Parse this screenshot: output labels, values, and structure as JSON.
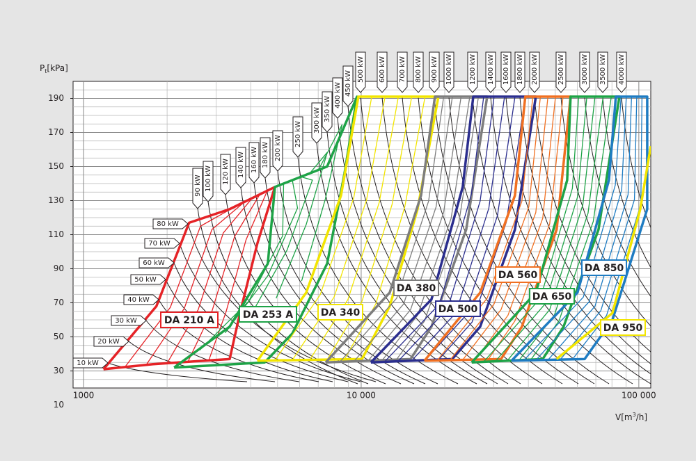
{
  "chart_data": {
    "type": "line",
    "x_scale": "log",
    "y_label": {
      "symbol": "P",
      "subscript": "t",
      "unit": "[kPa]"
    },
    "x_label": {
      "symbol": "V[m",
      "superscript": "3",
      "unit": "/h]"
    },
    "xlim": [
      917,
      110400
    ],
    "ylim": [
      20,
      200
    ],
    "xticks": [
      1000,
      {
        "value": 10000,
        "label": "10 000"
      },
      {
        "value": 100000,
        "label": "100 000"
      }
    ],
    "yticks": [
      10,
      30,
      50,
      70,
      90,
      110,
      130,
      150,
      170,
      190
    ],
    "grid": true,
    "series": [
      {
        "name": "DA 210 A",
        "color": "#e52327",
        "x": [
          1180,
          1830,
          2400,
          3360,
          4890,
          4230,
          3660,
          3360,
          1780,
          1180
        ],
        "values": [
          31,
          68,
          117,
          125,
          138,
          105,
          64,
          37,
          34,
          31
        ]
      },
      {
        "name": "DA 253 A",
        "color": "#1ea347",
        "x": [
          2120,
          3360,
          4610,
          4890,
          7540,
          9660,
          8710,
          7540,
          5650,
          4490,
          2120
        ],
        "values": [
          32,
          56,
          93,
          138,
          150,
          191,
          146,
          93,
          52,
          35,
          32
        ]
      },
      {
        "name": "DA 340",
        "color": "#f2e500",
        "x": [
          4230,
          6340,
          8460,
          9770,
          18970,
          15960,
          12670,
          10070,
          4230
        ],
        "values": [
          36,
          76,
          133,
          191,
          191,
          125,
          68,
          37,
          36
        ]
      },
      {
        "name": "DA 380",
        "color": "#7d7d7d",
        "x": [
          7450,
          12670,
          16430,
          18440,
          28430,
          23890,
          17910,
          15070,
          7450
        ],
        "values": [
          35,
          76,
          133,
          191,
          191,
          113,
          56,
          37,
          35
        ]
      },
      {
        "name": "DA 500",
        "color": "#2b2e8e",
        "x": [
          10840,
          17910,
          23210,
          25330,
          42560,
          35790,
          26830,
          21290,
          10840
        ],
        "values": [
          35,
          72,
          138,
          191,
          191,
          113,
          56,
          37,
          35
        ]
      },
      {
        "name": "DA 560",
        "color": "#f07022",
        "x": [
          16900,
          26830,
          35790,
          39000,
          56780,
          50580,
          37910,
          31900,
          16900
        ],
        "values": [
          36,
          76,
          133,
          191,
          191,
          113,
          56,
          37,
          36
        ]
      },
      {
        "name": "DA 650",
        "color": "#1ea347",
        "x": [
          25010,
          42560,
          55190,
          56780,
          85110,
          71580,
          53580,
          45080,
          25010
        ],
        "values": [
          35,
          76,
          142,
          191,
          191,
          113,
          56,
          37,
          35
        ]
      },
      {
        "name": "DA 850",
        "color": "#1f7cc2",
        "x": [
          34780,
          60140,
          78040,
          82640,
          107200,
          107200,
          80350,
          63800,
          34780
        ],
        "values": [
          36,
          76,
          142,
          191,
          191,
          125,
          60,
          37,
          36
        ]
      },
      {
        "name": "DA 950",
        "color": "#f2e500",
        "x": [
          50580,
          80350,
          101200,
          110400
        ],
        "values": [
          37,
          64,
          125,
          162
        ]
      }
    ],
    "power_labels": [
      "10 kW",
      "20 kW",
      "30 kW",
      "40 kW",
      "50 kW",
      "60 kW",
      "70 kW",
      "80 kW",
      "90 kW",
      "100 kW",
      "120 kW",
      "140 kW",
      "160 kW",
      "180 kW",
      "200 kW",
      "250 kW",
      "300 kW",
      "350 kW",
      "400 kW",
      "450 kW",
      "500 kW",
      "600 kW",
      "700 kW",
      "800 kW",
      "900 kW",
      "1000 kW",
      "1200 kW",
      "1400 kW",
      "1600 kW",
      "1800 kW",
      "2000 kW",
      "2500 kW",
      "3000 kW",
      "3500 kW",
      "4000 kW"
    ]
  }
}
